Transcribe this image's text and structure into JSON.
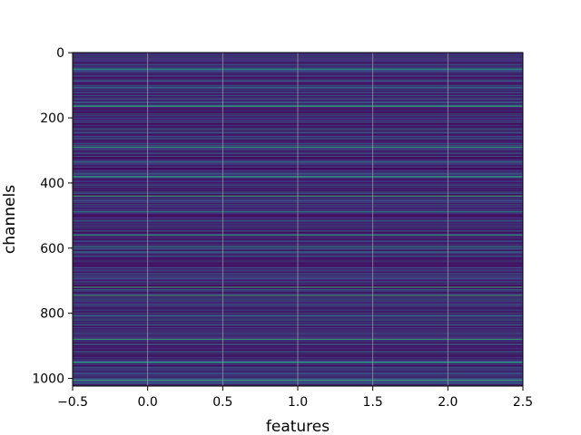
{
  "chart_data": {
    "type": "heatmap",
    "title": "",
    "xlabel": "features",
    "ylabel": "channels",
    "xlim": [
      -0.5,
      2.5
    ],
    "ylim": [
      1023.5,
      -0.5
    ],
    "y_inverted": true,
    "n_rows": 1024,
    "n_cols": 3,
    "colormap": "viridis",
    "grid": true,
    "grid_color": "#b0b0b0",
    "x_ticks": [
      -0.5,
      0.0,
      0.5,
      1.0,
      1.5,
      2.0,
      2.5
    ],
    "x_tick_labels": [
      "−0.5",
      "0.0",
      "0.5",
      "1.0",
      "1.5",
      "2.0",
      "2.5"
    ],
    "y_ticks": [
      0,
      200,
      400,
      600,
      800,
      1000
    ],
    "y_tick_labels": [
      "0",
      "200",
      "400",
      "600",
      "800",
      "1000"
    ],
    "row_pattern": "each row is constant across all features; values vary per channel, mostly dark purple/blue with scattered teal and green bands",
    "notable_bright_rows": [
      50,
      165,
      290,
      380,
      440,
      560,
      720,
      745,
      880,
      950,
      1005
    ],
    "colors": {
      "low": "#440154",
      "mid_low": "#3b528b",
      "mid": "#21918c",
      "high": "#5ec962",
      "max": "#fde725"
    }
  }
}
